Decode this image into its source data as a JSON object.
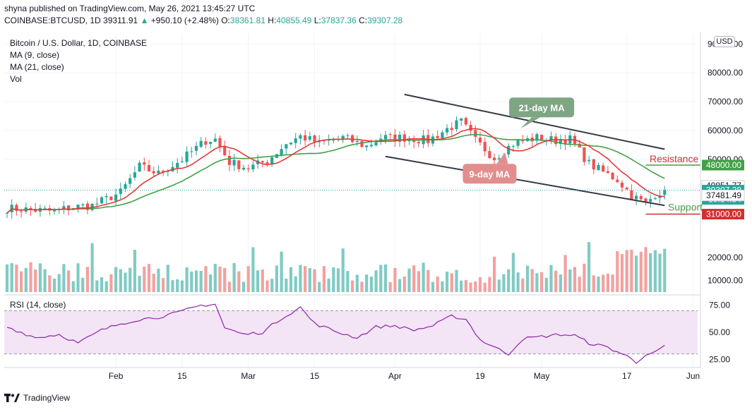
{
  "header": {
    "published": "shyna published on TradingView.com, May 26, 2021 13:45:27 UTC",
    "symbol": "COINBASE:BTCUSD, 1D",
    "last": "39311.91",
    "change": "+950.10 (+2.48%)",
    "o_label": "O:",
    "o": "38361.81",
    "h_label": "H:",
    "h": "40855.49",
    "l_label": "L:",
    "l": "37837.36",
    "c_label": "C:",
    "c": "39307.28"
  },
  "legend": {
    "title": "Bitcoin / U.S. Dollar, 1D, COINBASE",
    "ma9": "MA (9, close)",
    "ma21": "MA (21, close)",
    "vol": "Vol",
    "rsi": "RSI (14, close)"
  },
  "currency_button": "USD",
  "footer": {
    "brand": "TradingView"
  },
  "colors": {
    "up": "#26a69a",
    "down": "#ef5350",
    "vol_up": "#80cbc4",
    "vol_down": "#f3a1a0",
    "ma9": "#e53935",
    "ma21": "#43a047",
    "rsi": "#8e24aa",
    "rsi_band": "#f3e5f5",
    "trendline": "#363a45",
    "resistance": "#43a047",
    "support": "#d32f2f"
  },
  "chart_data": {
    "type": "candlestick",
    "title": "Bitcoin / U.S. Dollar, 1D, COINBASE",
    "price_axis": {
      "range": [
        3000,
        93500
      ],
      "ticks": [
        "90000.00",
        "80000.00",
        "70000.00",
        "60000.00",
        "50000.00",
        "40000.00"
      ],
      "tick_values": [
        90000,
        80000,
        70000,
        60000,
        50000,
        40000
      ]
    },
    "volume_axis": {
      "range": [
        5000,
        40000
      ],
      "ticks": [
        "20000.00",
        "10000.00"
      ],
      "tick_values": [
        20000,
        10000
      ]
    },
    "rsi_axis": {
      "range": [
        18,
        82
      ],
      "ticks": [
        "75.00",
        "50.00",
        "25.00"
      ],
      "tick_values": [
        75,
        50,
        25
      ],
      "band": [
        30,
        70
      ]
    },
    "x_axis": {
      "ticks": [
        "Feb",
        "15",
        "Mar",
        "15",
        "Apr",
        "19",
        "May",
        "17",
        "Jun"
      ],
      "tick_index": [
        23,
        37,
        51,
        65,
        82,
        100,
        113,
        131,
        145
      ]
    },
    "price_labels": [
      {
        "text": "48000.00",
        "value": 48000,
        "color": "#43a047"
      },
      {
        "text": "40851.77",
        "value": 40851.77,
        "color": "#ffffff"
      },
      {
        "text": "39307.28",
        "value": 39307.28,
        "color": "#26a69a",
        "sub": "10:14:34"
      },
      {
        "text": "37481.49",
        "value": 37481.49,
        "color": "#ffffff"
      },
      {
        "text": "31000.00",
        "value": 31000,
        "color": "#d32f2f"
      }
    ],
    "annotations": [
      {
        "text": "21-day MA",
        "color": "#7fa683",
        "value_x": 113,
        "value_y": 68000
      },
      {
        "text": "9-day MA",
        "color": "#e38e8e",
        "value_x": 102,
        "value_y": 45000
      },
      {
        "text": "Resistance",
        "color": "#d32f2f",
        "value_x": 135,
        "value_y": 48000
      },
      {
        "text": "Support",
        "color": "#43a047",
        "value_x": 135,
        "value_y": 31000
      }
    ],
    "trendlines": [
      {
        "from": [
          84,
          72500
        ],
        "to": [
          139,
          53500
        ]
      },
      {
        "from": [
          80,
          51000
        ],
        "to": [
          139,
          34000
        ]
      }
    ],
    "levels": [
      {
        "name": "Resistance",
        "value": 48000,
        "from": 135
      },
      {
        "name": "Support",
        "value": 31000,
        "from": 135
      }
    ],
    "anchors": [
      {
        "i": 0,
        "c": 33000
      },
      {
        "i": 10,
        "c": 32000
      },
      {
        "i": 14,
        "c": 33500
      },
      {
        "i": 18,
        "c": 34000
      },
      {
        "i": 24,
        "c": 38500
      },
      {
        "i": 28,
        "c": 47500
      },
      {
        "i": 32,
        "c": 45000
      },
      {
        "i": 37,
        "c": 50000
      },
      {
        "i": 42,
        "c": 56500
      },
      {
        "i": 44,
        "c": 57000
      },
      {
        "i": 47,
        "c": 49000
      },
      {
        "i": 51,
        "c": 47000
      },
      {
        "i": 55,
        "c": 49500
      },
      {
        "i": 59,
        "c": 55500
      },
      {
        "i": 62,
        "c": 58000
      },
      {
        "i": 66,
        "c": 55500
      },
      {
        "i": 71,
        "c": 57500
      },
      {
        "i": 76,
        "c": 54500
      },
      {
        "i": 79,
        "c": 57500
      },
      {
        "i": 84,
        "c": 57500
      },
      {
        "i": 89,
        "c": 56500
      },
      {
        "i": 93,
        "c": 60500
      },
      {
        "i": 96,
        "c": 63000
      },
      {
        "i": 99,
        "c": 56500
      },
      {
        "i": 103,
        "c": 50500
      },
      {
        "i": 107,
        "c": 55500
      },
      {
        "i": 112,
        "c": 57500
      },
      {
        "i": 116,
        "c": 56500
      },
      {
        "i": 119,
        "c": 57000
      },
      {
        "i": 123,
        "c": 48500
      },
      {
        "i": 126,
        "c": 45500
      },
      {
        "i": 129,
        "c": 43000
      },
      {
        "i": 132,
        "c": 37500
      },
      {
        "i": 135,
        "c": 34500
      },
      {
        "i": 137,
        "c": 38000
      },
      {
        "i": 139,
        "c": 39307
      }
    ],
    "rsi_anchors": [
      {
        "i": 0,
        "v": 55
      },
      {
        "i": 6,
        "v": 45
      },
      {
        "i": 11,
        "v": 48
      },
      {
        "i": 15,
        "v": 40
      },
      {
        "i": 20,
        "v": 52
      },
      {
        "i": 24,
        "v": 58
      },
      {
        "i": 28,
        "v": 62
      },
      {
        "i": 32,
        "v": 64
      },
      {
        "i": 36,
        "v": 68
      },
      {
        "i": 41,
        "v": 75
      },
      {
        "i": 44,
        "v": 76
      },
      {
        "i": 46,
        "v": 54
      },
      {
        "i": 50,
        "v": 48
      },
      {
        "i": 54,
        "v": 50
      },
      {
        "i": 58,
        "v": 63
      },
      {
        "i": 62,
        "v": 73
      },
      {
        "i": 65,
        "v": 58
      },
      {
        "i": 70,
        "v": 50
      },
      {
        "i": 74,
        "v": 45
      },
      {
        "i": 78,
        "v": 55
      },
      {
        "i": 82,
        "v": 56
      },
      {
        "i": 86,
        "v": 52
      },
      {
        "i": 90,
        "v": 56
      },
      {
        "i": 94,
        "v": 65
      },
      {
        "i": 97,
        "v": 62
      },
      {
        "i": 100,
        "v": 43
      },
      {
        "i": 104,
        "v": 34
      },
      {
        "i": 106,
        "v": 30
      },
      {
        "i": 109,
        "v": 44
      },
      {
        "i": 113,
        "v": 46
      },
      {
        "i": 117,
        "v": 48
      },
      {
        "i": 120,
        "v": 47
      },
      {
        "i": 123,
        "v": 40
      },
      {
        "i": 127,
        "v": 36
      },
      {
        "i": 131,
        "v": 28
      },
      {
        "i": 133,
        "v": 22
      },
      {
        "i": 135,
        "v": 30
      },
      {
        "i": 137,
        "v": 31
      },
      {
        "i": 139,
        "v": 38
      }
    ]
  }
}
